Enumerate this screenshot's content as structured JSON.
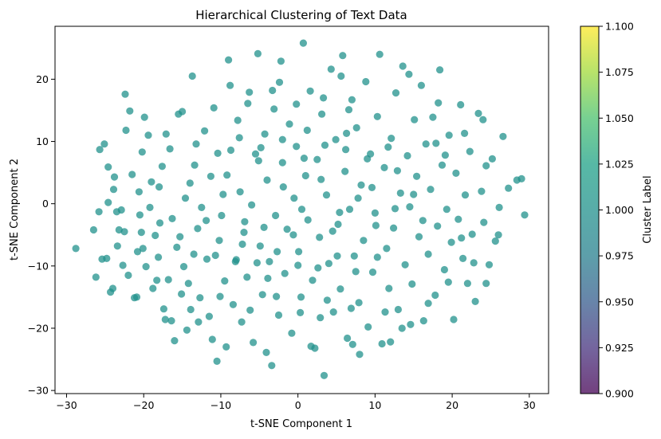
{
  "chart_data": {
    "type": "scatter",
    "title": "Hierarchical Clustering of Text Data",
    "xlabel": "t-SNE Component 1",
    "ylabel": "t-SNE Component 2",
    "xlim": [
      -31.5,
      32.5
    ],
    "ylim": [
      -30.5,
      28.5
    ],
    "xticks": [
      -30,
      -20,
      -10,
      0,
      10,
      20,
      30
    ],
    "yticks": [
      -30,
      -20,
      -10,
      0,
      10,
      20
    ],
    "grid": false,
    "legend": "none",
    "point_color": "#21918c",
    "point_alpha": 0.75,
    "colorbar": {
      "label": "Cluster Label",
      "min": 0.9,
      "max": 1.1,
      "ticks": [
        "0.900",
        "0.925",
        "0.950",
        "0.975",
        "1.000",
        "1.025",
        "1.050",
        "1.075",
        "1.100"
      ],
      "colormap": "viridis"
    },
    "series": [
      {
        "points": [
          [
            -28.8,
            -7.2
          ],
          [
            -26.5,
            -4.2
          ],
          [
            -26.2,
            -11.8
          ],
          [
            -25.8,
            -1.3
          ],
          [
            -25.4,
            -8.9
          ],
          [
            -25.7,
            8.7
          ],
          [
            -25.1,
            9.6
          ],
          [
            -24.6,
            5.9
          ],
          [
            -24.3,
            -14.2
          ],
          [
            -24.0,
            -13.6
          ],
          [
            -23.9,
            2.3
          ],
          [
            -23.8,
            4.3
          ],
          [
            -23.5,
            -1.3
          ],
          [
            -23.2,
            -4.2
          ],
          [
            -23.4,
            -6.8
          ],
          [
            -22.7,
            -9.9
          ],
          [
            -22.4,
            17.6
          ],
          [
            -22.3,
            11.8
          ],
          [
            -22.0,
            -11.5
          ],
          [
            -21.8,
            14.9
          ],
          [
            -21.2,
            -15.1
          ],
          [
            -20.9,
            -15.0
          ],
          [
            -20.8,
            -7.7
          ],
          [
            -20.5,
            -1.8
          ],
          [
            -20.3,
            -4.6
          ],
          [
            -20.6,
            1.9
          ],
          [
            -20.2,
            8.3
          ],
          [
            -19.9,
            13.9
          ],
          [
            -19.7,
            -10.1
          ],
          [
            -19.2,
            -0.6
          ],
          [
            -18.8,
            -13.6
          ],
          [
            -18.5,
            -5.1
          ],
          [
            -18.1,
            -8.6
          ],
          [
            -18.0,
            2.7
          ],
          [
            -17.6,
            6.0
          ],
          [
            -17.4,
            -16.9
          ],
          [
            -17.2,
            -18.6
          ],
          [
            -17.1,
            11.2
          ],
          [
            -16.8,
            -12.2
          ],
          [
            -16.3,
            -2.4
          ],
          [
            -16.0,
            -22.0
          ],
          [
            -15.7,
            -7.0
          ],
          [
            -15.3,
            -5.3
          ],
          [
            -15.0,
            14.8
          ],
          [
            -14.8,
            -10.1
          ],
          [
            -14.4,
            -20.3
          ],
          [
            -14.2,
            -12.8
          ],
          [
            -14.0,
            3.3
          ],
          [
            -13.7,
            20.5
          ],
          [
            -13.4,
            6.2
          ],
          [
            -13.0,
            -4.0
          ],
          [
            -12.7,
            -15.1
          ],
          [
            -12.5,
            -0.6
          ],
          [
            -12.1,
            11.7
          ],
          [
            -11.8,
            -8.9
          ],
          [
            -11.5,
            -18.1
          ],
          [
            -11.1,
            -21.8
          ],
          [
            -10.9,
            15.4
          ],
          [
            -10.5,
            -25.3
          ],
          [
            -10.2,
            -5.9
          ],
          [
            -9.9,
            -1.9
          ],
          [
            -9.5,
            -12.4
          ],
          [
            -9.2,
            4.6
          ],
          [
            -9.0,
            23.1
          ],
          [
            -8.7,
            8.6
          ],
          [
            -8.4,
            -16.2
          ],
          [
            -8.1,
            -9.3
          ],
          [
            -7.8,
            13.4
          ],
          [
            -7.5,
            1.9
          ],
          [
            -7.3,
            -19.0
          ],
          [
            -7.0,
            -4.6
          ],
          [
            -6.6,
            -11.8
          ],
          [
            -6.3,
            17.9
          ],
          [
            -6.0,
            -0.2
          ],
          [
            -5.8,
            -22.3
          ],
          [
            -5.5,
            8.0
          ],
          [
            -5.2,
            24.1
          ],
          [
            -4.9,
            -6.8
          ],
          [
            -4.6,
            -14.6
          ],
          [
            -4.3,
            11.2
          ],
          [
            -4.0,
            3.8
          ],
          [
            -3.7,
            -9.3
          ],
          [
            -3.4,
            -26.0
          ],
          [
            -3.1,
            15.2
          ],
          [
            -2.9,
            -1.9
          ],
          [
            -2.5,
            -17.9
          ],
          [
            -2.2,
            22.9
          ],
          [
            -2.0,
            6.6
          ],
          [
            -1.7,
            -11.2
          ],
          [
            -1.4,
            -4.1
          ],
          [
            -1.1,
            12.8
          ],
          [
            -0.8,
            -20.8
          ],
          [
            -0.5,
            0.9
          ],
          [
            -0.2,
            9.2
          ],
          [
            0.1,
            -7.7
          ],
          [
            0.4,
            -15.0
          ],
          [
            0.7,
            25.8
          ],
          [
            1.0,
            4.5
          ],
          [
            1.3,
            -2.6
          ],
          [
            1.6,
            18.1
          ],
          [
            1.9,
            -12.3
          ],
          [
            2.2,
            -23.2
          ],
          [
            2.5,
            7.1
          ],
          [
            2.8,
            -5.4
          ],
          [
            3.1,
            14.4
          ],
          [
            3.4,
            -27.6
          ],
          [
            3.7,
            1.4
          ],
          [
            4.0,
            -9.6
          ],
          [
            4.3,
            21.6
          ],
          [
            4.6,
            -17.4
          ],
          [
            4.9,
            10.3
          ],
          [
            5.2,
            -3.3
          ],
          [
            5.5,
            -13.7
          ],
          [
            5.8,
            23.8
          ],
          [
            6.1,
            5.2
          ],
          [
            6.4,
            -21.6
          ],
          [
            6.7,
            -0.9
          ],
          [
            7.0,
            16.7
          ],
          [
            7.3,
            -8.4
          ],
          [
            7.6,
            12.2
          ],
          [
            7.9,
            -15.9
          ],
          [
            8.2,
            3.0
          ],
          [
            8.5,
            -5.9
          ],
          [
            8.8,
            19.6
          ],
          [
            9.1,
            -19.8
          ],
          [
            9.4,
            8.0
          ],
          [
            9.7,
            -11.0
          ],
          [
            10.0,
            -1.5
          ],
          [
            10.3,
            14.0
          ],
          [
            10.6,
            24.0
          ],
          [
            10.9,
            -22.5
          ],
          [
            11.2,
            5.8
          ],
          [
            11.5,
            -7.2
          ],
          [
            11.8,
            -13.6
          ],
          [
            12.1,
            10.5
          ],
          [
            12.4,
            -3.9
          ],
          [
            12.7,
            17.8
          ],
          [
            13.0,
            -17.0
          ],
          [
            13.3,
            1.7
          ],
          [
            13.6,
            22.1
          ],
          [
            13.9,
            -9.8
          ],
          [
            14.2,
            7.7
          ],
          [
            14.5,
            -0.5
          ],
          [
            14.8,
            -12.9
          ],
          [
            15.1,
            13.5
          ],
          [
            15.4,
            4.4
          ],
          [
            15.7,
            -5.3
          ],
          [
            16.0,
            19.0
          ],
          [
            16.3,
            -18.8
          ],
          [
            16.6,
            9.6
          ],
          [
            16.9,
            -8.1
          ],
          [
            17.2,
            2.3
          ],
          [
            17.5,
            13.9
          ],
          [
            17.8,
            -14.7
          ],
          [
            18.1,
            -3.6
          ],
          [
            18.4,
            21.5
          ],
          [
            18.7,
            6.2
          ],
          [
            19.0,
            -10.6
          ],
          [
            19.3,
            -0.9
          ],
          [
            19.6,
            11.0
          ],
          [
            19.9,
            -6.2
          ],
          [
            20.2,
            -18.6
          ],
          [
            20.5,
            4.9
          ],
          [
            20.8,
            -2.5
          ],
          [
            21.1,
            15.9
          ],
          [
            21.4,
            -8.8
          ],
          [
            21.7,
            1.4
          ],
          [
            22.0,
            -12.8
          ],
          [
            22.3,
            8.4
          ],
          [
            22.6,
            -4.9
          ],
          [
            23.0,
            -15.7
          ],
          [
            23.4,
            14.5
          ],
          [
            23.8,
            2.0
          ],
          [
            24.1,
            -3.0
          ],
          [
            24.4,
            6.1
          ],
          [
            24.8,
            -9.8
          ],
          [
            25.2,
            7.2
          ],
          [
            25.6,
            -6.0
          ],
          [
            26.1,
            -0.6
          ],
          [
            26.6,
            10.8
          ],
          [
            27.3,
            2.5
          ],
          [
            28.4,
            3.8
          ],
          [
            29.0,
            4.0
          ],
          [
            29.4,
            -1.8
          ],
          [
            -22.9,
            -1.0
          ],
          [
            -21.5,
            4.7
          ],
          [
            -19.0,
            3.5
          ],
          [
            -16.6,
            8.8
          ],
          [
            -15.1,
            -14.5
          ],
          [
            -12.9,
            -19.0
          ],
          [
            -11.3,
            4.4
          ],
          [
            -10.1,
            -14.9
          ],
          [
            -8.8,
            19.0
          ],
          [
            -6.9,
            -2.9
          ],
          [
            -5.1,
            6.9
          ],
          [
            -3.9,
            -12.0
          ],
          [
            -2.4,
            19.5
          ],
          [
            -0.6,
            -5.0
          ],
          [
            1.2,
            11.8
          ],
          [
            2.9,
            -18.3
          ],
          [
            4.5,
            -4.4
          ],
          [
            6.2,
            8.7
          ],
          [
            8.0,
            -24.2
          ],
          [
            9.6,
            2.6
          ],
          [
            11.3,
            -17.4
          ],
          [
            12.9,
            5.3
          ],
          [
            14.6,
            -19.4
          ],
          [
            16.2,
            -2.7
          ],
          [
            17.9,
            9.7
          ],
          [
            19.5,
            -12.6
          ],
          [
            21.2,
            -5.5
          ],
          [
            -17.9,
            -3.1
          ],
          [
            -14.6,
            0.9
          ],
          [
            -11.9,
            -2.7
          ],
          [
            -9.7,
            1.5
          ],
          [
            -7.2,
            -6.5
          ],
          [
            -4.4,
            -3.8
          ],
          [
            -1.9,
            2.7
          ],
          [
            0.5,
            -0.9
          ],
          [
            3.0,
            3.9
          ],
          [
            5.4,
            -1.4
          ],
          [
            7.8,
            0.9
          ],
          [
            10.1,
            -3.5
          ],
          [
            12.6,
            -0.8
          ],
          [
            15.0,
            1.5
          ],
          [
            -13.5,
            -8.1
          ],
          [
            -10.7,
            -8.3
          ],
          [
            -8.0,
            -9.0
          ],
          [
            -5.3,
            -9.5
          ],
          [
            -2.7,
            -7.7
          ],
          [
            0.0,
            -9.9
          ],
          [
            2.6,
            -10.3
          ],
          [
            5.1,
            -8.4
          ],
          [
            7.5,
            -10.9
          ],
          [
            10.3,
            -8.6
          ],
          [
            -13.2,
            9.6
          ],
          [
            -10.4,
            8.1
          ],
          [
            -7.6,
            10.6
          ],
          [
            -4.8,
            9.0
          ],
          [
            -2.0,
            10.3
          ],
          [
            0.8,
            7.3
          ],
          [
            3.5,
            9.4
          ],
          [
            6.3,
            11.3
          ],
          [
            9.0,
            7.2
          ],
          [
            11.7,
            9.1
          ],
          [
            -6.2,
            -17.1
          ],
          [
            -2.8,
            -14.9
          ],
          [
            0.3,
            -17.5
          ],
          [
            3.8,
            -15.5
          ],
          [
            6.9,
            -16.8
          ],
          [
            -6.5,
            16.1
          ],
          [
            -3.3,
            18.2
          ],
          [
            -0.2,
            16.0
          ],
          [
            3.3,
            17.0
          ],
          [
            6.6,
            15.1
          ],
          [
            -18.3,
            -12.3
          ],
          [
            -20.1,
            -7.2
          ],
          [
            -22.5,
            -4.5
          ],
          [
            -24.8,
            -8.8
          ],
          [
            19.1,
            7.8
          ],
          [
            21.6,
            11.3
          ],
          [
            24.0,
            13.5
          ],
          [
            26.0,
            -5.0
          ],
          [
            -24.6,
            0.2
          ],
          [
            -19.4,
            11.0
          ],
          [
            -15.5,
            14.4
          ],
          [
            -13.9,
            -17.0
          ],
          [
            -9.3,
            -23.0
          ],
          [
            -4.1,
            -23.9
          ],
          [
            1.7,
            -22.9
          ],
          [
            7.1,
            -22.6
          ],
          [
            12.0,
            -22.2
          ],
          [
            16.9,
            -16.0
          ],
          [
            13.5,
            -20.0
          ],
          [
            -16.4,
            -18.8
          ],
          [
            22.8,
            -9.5
          ],
          [
            24.4,
            -12.8
          ],
          [
            18.2,
            16.2
          ],
          [
            14.4,
            20.8
          ],
          [
            5.6,
            20.5
          ]
        ]
      }
    ]
  }
}
